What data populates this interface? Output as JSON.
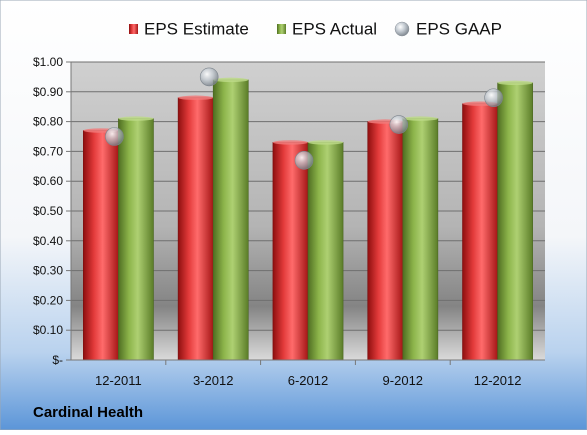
{
  "company": "Cardinal Health",
  "chart_data": {
    "type": "bar",
    "categories": [
      "12-2011",
      "3-2012",
      "6-2012",
      "9-2012",
      "12-2012"
    ],
    "series": [
      {
        "name": "EPS Estimate",
        "kind": "bar",
        "color": "#d42a2a",
        "values": [
          0.77,
          0.88,
          0.73,
          0.8,
          0.86
        ]
      },
      {
        "name": "EPS Actual",
        "kind": "bar",
        "color": "#7aa23c",
        "values": [
          0.81,
          0.94,
          0.73,
          0.81,
          0.93
        ]
      },
      {
        "name": "EPS GAAP",
        "kind": "marker",
        "color": "#b8c0c8",
        "values": [
          0.75,
          0.95,
          0.67,
          0.79,
          0.88
        ]
      }
    ],
    "yticks": [
      "$-",
      "$0.10",
      "$0.20",
      "$0.30",
      "$0.40",
      "$0.50",
      "$0.60",
      "$0.70",
      "$0.80",
      "$0.90",
      "$1.00"
    ],
    "ylim": [
      0,
      1.0
    ],
    "ystep": 0.1,
    "grid": true,
    "legend": "top"
  }
}
